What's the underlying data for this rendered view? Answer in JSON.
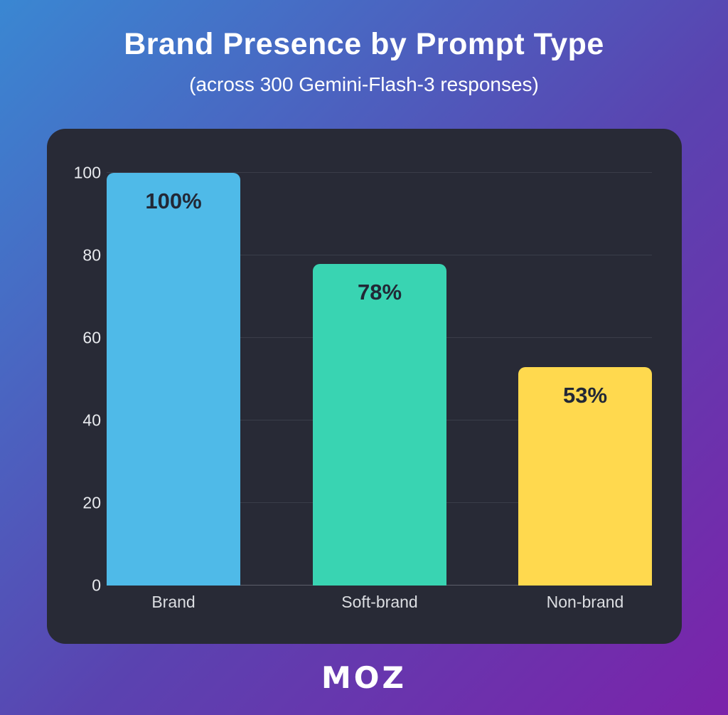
{
  "header": {
    "title": "Brand Presence by Prompt Type",
    "subtitle": "(across 300 Gemini-Flash-3 responses)"
  },
  "footer": {
    "logo_text": "MOZ"
  },
  "colors": {
    "background_gradient_start": "#3a87d2",
    "background_gradient_mid": "#5a43b0",
    "background_gradient_end": "#7b23aa",
    "panel_bg": "#282a36",
    "grid_line": "#3a3d49",
    "baseline": "#5c5f6a",
    "axis_text": "#e8eaee",
    "value_label_text": "#222836"
  },
  "chart_data": {
    "type": "bar",
    "title": "Brand Presence by Prompt Type",
    "subtitle": "(across 300 Gemini-Flash-3 responses)",
    "categories": [
      "Brand",
      "Soft-brand",
      "Non-brand"
    ],
    "values": [
      100,
      78,
      53
    ],
    "value_labels": [
      "100%",
      "78%",
      "53%"
    ],
    "bar_colors": [
      "#4fbae8",
      "#39d4b2",
      "#ffd94e"
    ],
    "xlabel": "",
    "ylabel": "",
    "ylim": [
      0,
      100
    ],
    "yticks": [
      0,
      20,
      40,
      60,
      80,
      100
    ],
    "grid": true,
    "legend": false
  }
}
